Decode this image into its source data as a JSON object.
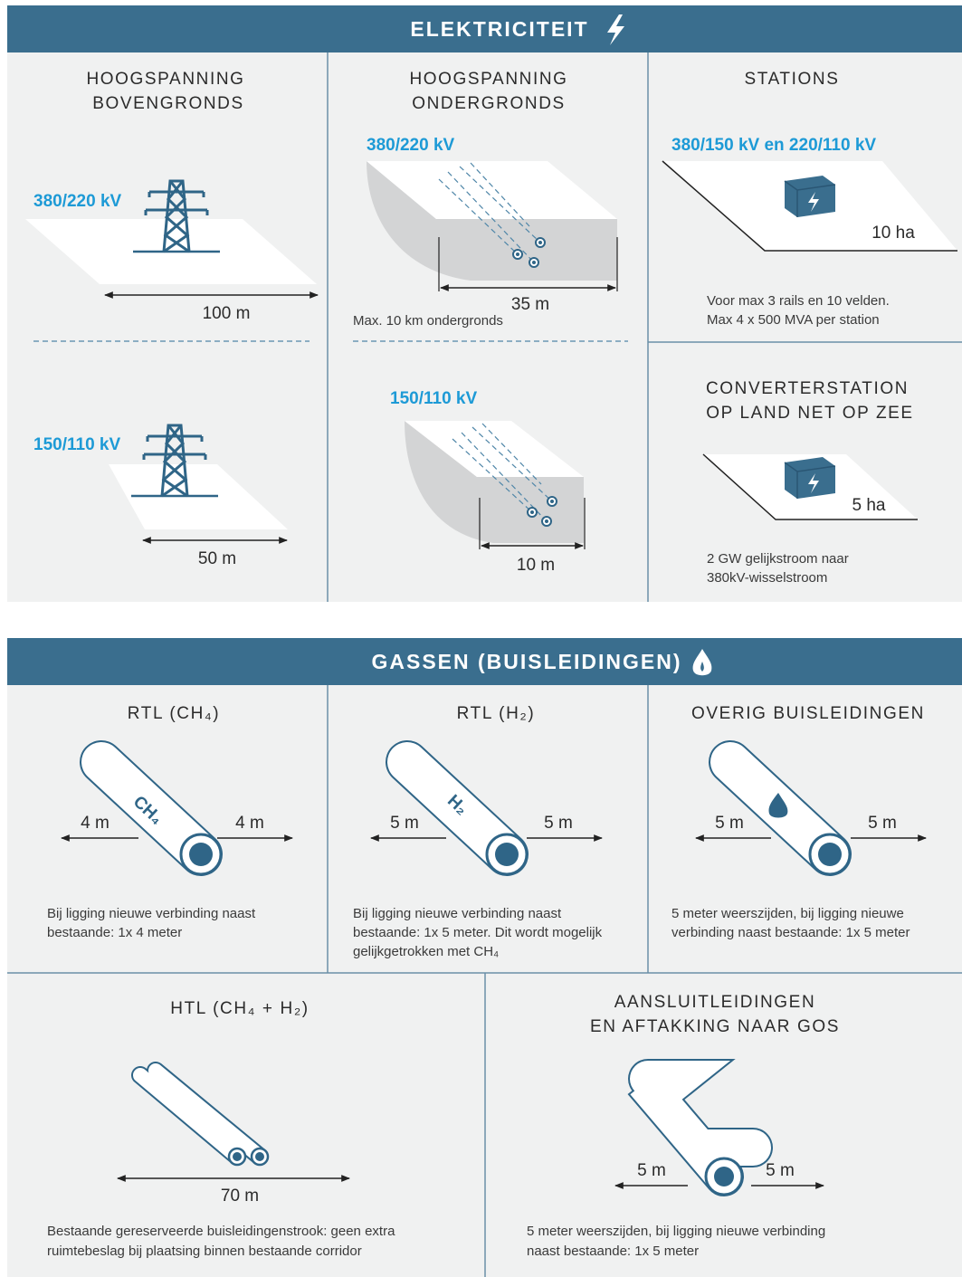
{
  "elektriciteit": {
    "title": "ELEKTRICITEIT",
    "bovengronds": {
      "title": [
        "HOOGSPANNING",
        "BOVENGRONDS"
      ],
      "items": [
        {
          "voltage": "380/220 kV",
          "width": "100 m"
        },
        {
          "voltage": "150/110 kV",
          "width": "50 m"
        }
      ]
    },
    "ondergronds": {
      "title": [
        "HOOGSPANNING",
        "ONDERGRONDS"
      ],
      "items": [
        {
          "voltage": "380/220 kV",
          "width": "35 m",
          "note": "Max. 10 km ondergronds"
        },
        {
          "voltage": "150/110 kV",
          "width": "10 m"
        }
      ]
    },
    "stations": {
      "title": "STATIONS",
      "voltage": "380/150 kV en 220/110 kV",
      "area": "10 ha",
      "note": [
        "Voor max 3 rails en 10 velden.",
        "Max 4 x 500 MVA per station"
      ]
    },
    "converterstation": {
      "title": [
        "CONVERTERSTATION",
        "OP LAND NET OP ZEE"
      ],
      "area": "5 ha",
      "note": [
        "2 GW gelijkstroom naar",
        "380kV-wisselstroom"
      ]
    }
  },
  "gassen": {
    "title": "GASSEN (BUISLEIDINGEN)",
    "rtl_ch4": {
      "title": "RTL (CH₄)",
      "label": "CH₄",
      "left": "4 m",
      "right": "4 m",
      "note": [
        "Bij ligging nieuwe verbinding naast",
        "bestaande: 1x 4 meter"
      ]
    },
    "rtl_h2": {
      "title": "RTL (H₂)",
      "label": "H₂",
      "left": "5 m",
      "right": "5 m",
      "note": [
        "Bij ligging nieuwe verbinding naast",
        "bestaande: 1x 5 meter. Dit wordt mogelijk",
        "gelijkgetrokken met CH₄"
      ]
    },
    "overig": {
      "title": "OVERIG BUISLEIDINGEN",
      "left": "5 m",
      "right": "5 m",
      "note": [
        "5 meter weerszijden, bij ligging nieuwe",
        "verbinding naast bestaande: 1x 5 meter"
      ]
    },
    "htl": {
      "title": "HTL (CH₄ + H₂)",
      "width": "70 m",
      "note": [
        "Bestaande gereserveerde buisleidingenstrook: geen extra",
        "ruimtebeslag bij plaatsing binnen bestaande corridor"
      ]
    },
    "aansluit": {
      "title": [
        "AANSLUITLEIDINGEN",
        "EN AFTAKKING NAAR GOS"
      ],
      "left": "5 m",
      "right": "5 m",
      "note": [
        "5 meter weerszijden, bij ligging nieuwe verbinding",
        "naast bestaande: 1x 5 meter"
      ]
    }
  }
}
